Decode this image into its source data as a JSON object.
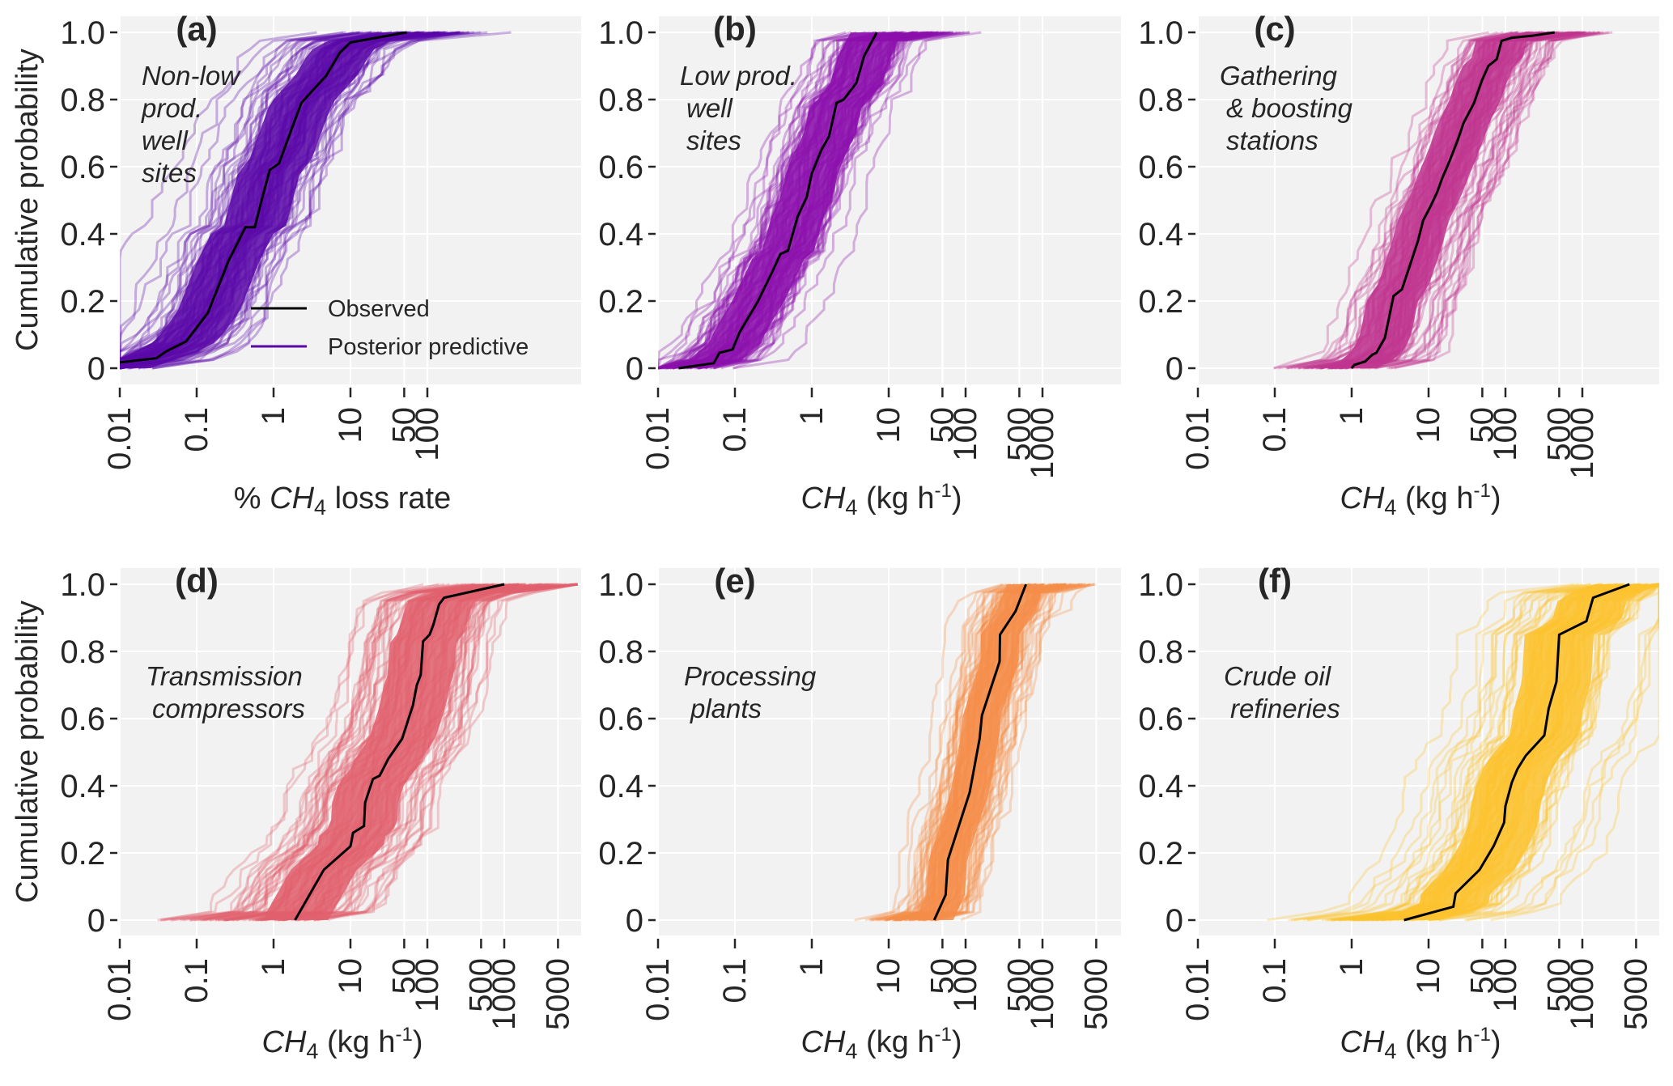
{
  "figure": {
    "ylabel": "Cumulative probability",
    "legend": {
      "observed_label": "Observed",
      "posterior_label": "Posterior predictive",
      "placement": "lower-right of panel (a)"
    }
  },
  "chart_data": [
    {
      "id": "a",
      "type": "line",
      "tag": "(a)",
      "annotation": [
        "Non-low",
        "prod.",
        "well",
        "sites"
      ],
      "xlabel_parts": {
        "prefix": "% ",
        "species": "CH",
        "sub": "4",
        "suffix": " loss rate",
        "sup": ""
      },
      "xscale": "log",
      "xlim": [
        0.01,
        10000
      ],
      "ylim": [
        0,
        1
      ],
      "xticks": [
        0.01,
        0.1,
        1,
        10,
        50,
        100
      ],
      "xtick_labels": [
        "0.01",
        "0.1",
        "1",
        "10",
        "50",
        "100"
      ],
      "yticks": [
        0,
        0.2,
        0.4,
        0.6,
        0.8,
        1.0
      ],
      "ytick_labels": [
        "0",
        "0.2",
        "0.4",
        "0.6",
        "0.8",
        "1.0"
      ],
      "color": "#5a08a8",
      "posterior_range": [
        0.01,
        2400
      ],
      "observed": {
        "x": [
          0.01,
          0.03,
          0.04,
          0.073,
          0.14,
          0.26,
          0.43,
          0.57,
          0.68,
          0.89,
          1.18,
          1.58,
          2.3,
          3.3,
          4.8,
          7.3,
          10,
          54
        ],
        "y": [
          0.017,
          0.03,
          0.05,
          0.08,
          0.165,
          0.32,
          0.42,
          0.42,
          0.49,
          0.59,
          0.61,
          0.69,
          0.79,
          0.83,
          0.87,
          0.94,
          0.97,
          1.0
        ]
      }
    },
    {
      "id": "b",
      "type": "line",
      "tag": "(b)",
      "annotation": [
        "Low prod.",
        " well",
        " sites"
      ],
      "xlabel_parts": {
        "prefix": "",
        "species": "CH",
        "sub": "4",
        "suffix": " (kg h",
        "sup": "-1",
        "close": ")"
      },
      "xscale": "log",
      "xlim": [
        0.01,
        10000
      ],
      "ylim": [
        0,
        1
      ],
      "xticks": [
        0.01,
        0.1,
        1,
        10,
        50,
        100,
        500,
        1000
      ],
      "xtick_labels": [
        "0.01",
        "0.1",
        "1",
        "10",
        "50",
        "100",
        "500",
        "1000"
      ],
      "yticks": [
        0,
        0.2,
        0.4,
        0.6,
        0.8,
        1.0
      ],
      "ytick_labels": [
        "0",
        "0.2",
        "0.4",
        "0.6",
        "0.8",
        "1.0"
      ],
      "color": "#8c0fad",
      "posterior_range": [
        0.01,
        330
      ],
      "observed": {
        "x": [
          0.0185,
          0.053,
          0.063,
          0.093,
          0.115,
          0.2,
          0.31,
          0.39,
          0.49,
          0.65,
          0.86,
          1.0,
          1.33,
          1.67,
          2.1,
          2.6,
          3.8,
          4.8,
          7.0
        ],
        "y": [
          0,
          0.015,
          0.046,
          0.056,
          0.107,
          0.2,
          0.29,
          0.34,
          0.35,
          0.45,
          0.51,
          0.58,
          0.65,
          0.69,
          0.79,
          0.8,
          0.85,
          0.93,
          1.0
        ]
      }
    },
    {
      "id": "c",
      "type": "line",
      "tag": "(c)",
      "annotation": [
        "Gathering",
        " & boosting",
        " stations"
      ],
      "xlabel_parts": {
        "prefix": "",
        "species": "CH",
        "sub": "4",
        "suffix": " (kg h",
        "sup": "-1",
        "close": ")"
      },
      "xscale": "log",
      "xlim": [
        0.01,
        10000
      ],
      "ylim": [
        0,
        1
      ],
      "xticks": [
        0.01,
        0.1,
        1,
        10,
        50,
        100,
        500,
        1000
      ],
      "xtick_labels": [
        "0.01",
        "0.1",
        "1",
        "10",
        "50",
        "100",
        "500",
        "1000"
      ],
      "yticks": [
        0,
        0.2,
        0.4,
        0.6,
        0.8,
        1.0
      ],
      "ytick_labels": [
        "0",
        "0.2",
        "0.4",
        "0.6",
        "0.8",
        "1.0"
      ],
      "color": "#c0358f",
      "posterior_range": [
        0.097,
        2640
      ],
      "observed": {
        "x": [
          1.0,
          1.08,
          1.5,
          1.85,
          2.1,
          2.7,
          3.5,
          4.5,
          5.6,
          7.3,
          8.5,
          10.5,
          13,
          15,
          19,
          24,
          28.5,
          39,
          49,
          60,
          77,
          89,
          122,
          226,
          436
        ],
        "y": [
          0,
          0.01,
          0.02,
          0.04,
          0.046,
          0.09,
          0.215,
          0.235,
          0.3,
          0.38,
          0.44,
          0.48,
          0.525,
          0.565,
          0.62,
          0.68,
          0.73,
          0.79,
          0.855,
          0.9,
          0.92,
          0.975,
          0.984,
          0.99,
          1.0
        ]
      }
    },
    {
      "id": "d",
      "type": "line",
      "tag": "(d)",
      "annotation": [
        "Transmission",
        " compressors"
      ],
      "xlabel_parts": {
        "prefix": "",
        "species": "CH",
        "sub": "4",
        "suffix": " (kg h",
        "sup": "-1",
        "close": ")"
      },
      "xscale": "log",
      "xlim": [
        0.01,
        10000
      ],
      "ylim": [
        0,
        1
      ],
      "xticks": [
        0.01,
        0.1,
        1,
        10,
        50,
        100,
        500,
        1000,
        5000
      ],
      "xtick_labels": [
        "0.01",
        "0.1",
        "1",
        "10",
        "50",
        "100",
        "500",
        "1000",
        "5000"
      ],
      "yticks": [
        0,
        0.2,
        0.4,
        0.6,
        0.8,
        1.0
      ],
      "ytick_labels": [
        "0",
        "0.2",
        "0.4",
        "0.6",
        "0.8",
        "1.0"
      ],
      "color": "#e05f6c",
      "posterior_range": [
        0.017,
        9000
      ],
      "observed": {
        "x": [
          1.9,
          4.5,
          10,
          10.8,
          15,
          15.5,
          19.6,
          24,
          31,
          47,
          65,
          73,
          82,
          88,
          107,
          120,
          142,
          165,
          1000
        ],
        "y": [
          0,
          0.15,
          0.22,
          0.26,
          0.28,
          0.35,
          0.42,
          0.43,
          0.48,
          0.54,
          0.64,
          0.7,
          0.73,
          0.83,
          0.85,
          0.88,
          0.94,
          0.96,
          1.0
        ]
      }
    },
    {
      "id": "e",
      "type": "line",
      "tag": "(e)",
      "annotation": [
        "Processing",
        " plants"
      ],
      "xlabel_parts": {
        "prefix": "",
        "species": "CH",
        "sub": "4",
        "suffix": " (kg h",
        "sup": "-1",
        "close": ")"
      },
      "xscale": "log",
      "xlim": [
        0.01,
        10000
      ],
      "ylim": [
        0,
        1
      ],
      "xticks": [
        0.01,
        0.1,
        1,
        10,
        50,
        100,
        500,
        1000,
        5000
      ],
      "xtick_labels": [
        "0.01",
        "0.1",
        "1",
        "10",
        "50",
        "100",
        "500",
        "1000",
        "5000"
      ],
      "yticks": [
        0,
        0.2,
        0.4,
        0.6,
        0.8,
        1.0
      ],
      "ytick_labels": [
        "0",
        "0.2",
        "0.4",
        "0.6",
        "0.8",
        "1.0"
      ],
      "color": "#f58d4a",
      "posterior_range": [
        2.3,
        4800
      ],
      "observed": {
        "x": [
          39,
          55,
          59,
          113,
          152,
          163,
          277,
          280,
          447,
          610
        ],
        "y": [
          0,
          0.075,
          0.18,
          0.38,
          0.54,
          0.61,
          0.77,
          0.85,
          0.92,
          1.0
        ]
      }
    },
    {
      "id": "f",
      "type": "line",
      "tag": "(f)",
      "annotation": [
        "Crude oil",
        " refineries"
      ],
      "xlabel_parts": {
        "prefix": "",
        "species": "CH",
        "sub": "4",
        "suffix": " (kg h",
        "sup": "-1",
        "close": ")"
      },
      "xscale": "log",
      "xlim": [
        0.01,
        10000
      ],
      "ylim": [
        0,
        1
      ],
      "xticks": [
        0.01,
        0.1,
        1,
        10,
        50,
        100,
        500,
        1000,
        5000
      ],
      "xtick_labels": [
        "0.01",
        "0.1",
        "1",
        "10",
        "50",
        "100",
        "500",
        "1000",
        "5000"
      ],
      "yticks": [
        0,
        0.2,
        0.4,
        0.6,
        0.8,
        1.0
      ],
      "ytick_labels": [
        "0",
        "0.2",
        "0.4",
        "0.6",
        "0.8",
        "1.0"
      ],
      "color": "#fdc22d",
      "posterior_range": [
        0.01,
        10000
      ],
      "observed": {
        "x": [
          4.8,
          21,
          22.5,
          46,
          70,
          96,
          100,
          121,
          143,
          184,
          320,
          365,
          460,
          500,
          1130,
          1380,
          4100
        ],
        "y": [
          0,
          0.04,
          0.08,
          0.15,
          0.22,
          0.29,
          0.34,
          0.41,
          0.45,
          0.49,
          0.55,
          0.63,
          0.71,
          0.85,
          0.89,
          0.96,
          1.0
        ]
      }
    }
  ]
}
